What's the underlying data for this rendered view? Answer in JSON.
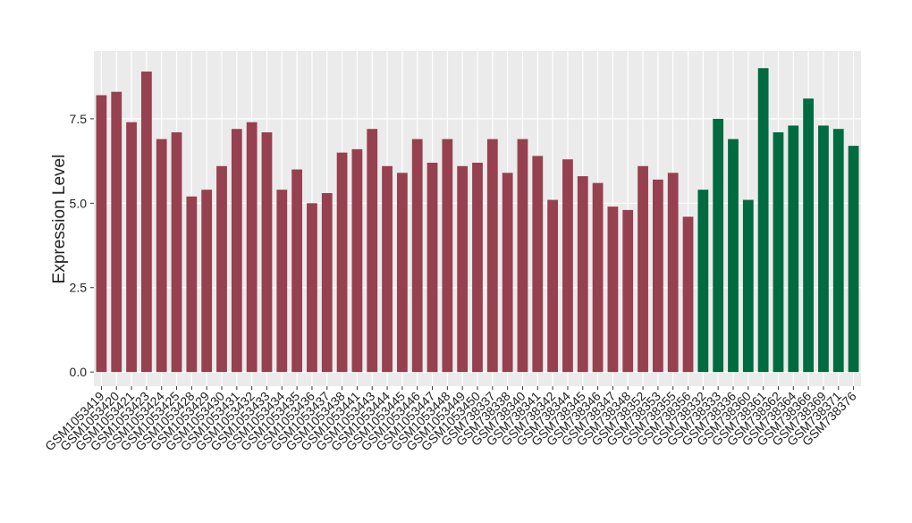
{
  "chart_data": {
    "type": "bar",
    "y_label": "Expression Level",
    "categories": [
      "GSM1053419",
      "GSM1053420",
      "GSM1053421",
      "GSM1053423",
      "GSM1053424",
      "GSM1053425",
      "GSM1053428",
      "GSM1053429",
      "GSM1053430",
      "GSM1053431",
      "GSM1053432",
      "GSM1053433",
      "GSM1053434",
      "GSM1053435",
      "GSM1053436",
      "GSM1053437",
      "GSM1053438",
      "GSM1053441",
      "GSM1053443",
      "GSM1053444",
      "GSM1053445",
      "GSM1053446",
      "GSM1053447",
      "GSM1053448",
      "GSM1053449",
      "GSM1053450",
      "GSM738337",
      "GSM738338",
      "GSM738340",
      "GSM738341",
      "GSM738342",
      "GSM738344",
      "GSM738345",
      "GSM738346",
      "GSM738347",
      "GSM738348",
      "GSM738352",
      "GSM738353",
      "GSM738355",
      "GSM738356",
      "GSM738332",
      "GSM738333",
      "GSM738336",
      "GSM738360",
      "GSM738361",
      "GSM738362",
      "GSM738364",
      "GSM738366",
      "GSM738369",
      "GSM738371",
      "GSM738376"
    ],
    "values": [
      8.2,
      8.3,
      7.4,
      8.9,
      6.9,
      7.1,
      5.2,
      5.4,
      6.1,
      7.2,
      7.4,
      7.1,
      5.4,
      6.0,
      5.0,
      5.3,
      6.5,
      6.6,
      7.2,
      6.1,
      5.9,
      6.9,
      6.2,
      6.9,
      6.1,
      6.2,
      6.9,
      5.9,
      6.9,
      6.4,
      5.1,
      6.3,
      5.8,
      5.6,
      4.9,
      4.8,
      6.1,
      5.7,
      5.9,
      4.6,
      5.4,
      7.5,
      6.9,
      5.1,
      9.0,
      7.1,
      7.3,
      8.1,
      7.3,
      7.2,
      6.7
    ],
    "colors": [
      "#97404f",
      "#97404f",
      "#97404f",
      "#97404f",
      "#97404f",
      "#97404f",
      "#97404f",
      "#97404f",
      "#97404f",
      "#97404f",
      "#97404f",
      "#97404f",
      "#97404f",
      "#97404f",
      "#97404f",
      "#97404f",
      "#97404f",
      "#97404f",
      "#97404f",
      "#97404f",
      "#97404f",
      "#97404f",
      "#97404f",
      "#97404f",
      "#97404f",
      "#97404f",
      "#97404f",
      "#97404f",
      "#97404f",
      "#97404f",
      "#97404f",
      "#97404f",
      "#97404f",
      "#97404f",
      "#97404f",
      "#97404f",
      "#97404f",
      "#97404f",
      "#97404f",
      "#97404f",
      "#006a40",
      "#006a40",
      "#006a40",
      "#006a40",
      "#006a40",
      "#006a40",
      "#006a40",
      "#006a40",
      "#006a40",
      "#006a40",
      "#006a40"
    ],
    "ylim": [
      -0.42,
      9.51
    ],
    "yticks": [
      {
        "value": 0,
        "label": "0.0"
      },
      2.5,
      {
        "value": 5,
        "label": "5.0"
      },
      7.5
    ],
    "grid": true
  }
}
